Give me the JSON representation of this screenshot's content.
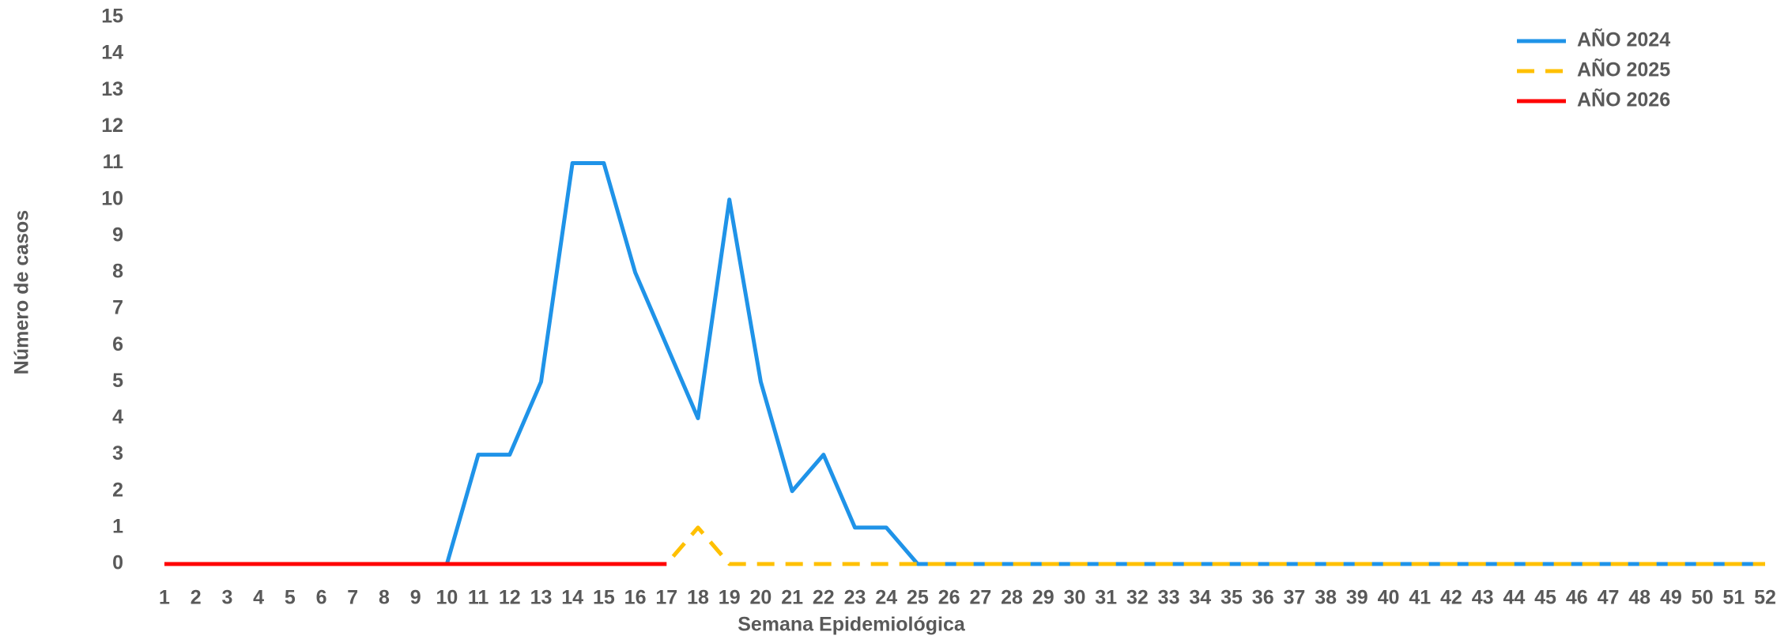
{
  "chart_data": {
    "type": "line",
    "x_label": "Semana Epidemiológica",
    "y_label": "Número de casos",
    "x": [
      1,
      2,
      3,
      4,
      5,
      6,
      7,
      8,
      9,
      10,
      11,
      12,
      13,
      14,
      15,
      16,
      17,
      18,
      19,
      20,
      21,
      22,
      23,
      24,
      25,
      26,
      27,
      28,
      29,
      30,
      31,
      32,
      33,
      34,
      35,
      36,
      37,
      38,
      39,
      40,
      41,
      42,
      43,
      44,
      45,
      46,
      47,
      48,
      49,
      50,
      51,
      52
    ],
    "xlim": [
      1,
      52
    ],
    "ylim": [
      0,
      15
    ],
    "yticks": [
      0,
      1,
      2,
      3,
      4,
      5,
      6,
      7,
      8,
      9,
      10,
      11,
      12,
      13,
      14,
      15
    ],
    "grid": false,
    "legend": "upper right",
    "series": [
      {
        "name": "AÑO 2024",
        "color": "#1f93e8",
        "dash": false,
        "values": [
          0,
          0,
          0,
          0,
          0,
          0,
          0,
          0,
          0,
          0,
          3,
          3,
          5,
          11,
          11,
          8,
          6,
          4,
          10,
          5,
          2,
          3,
          1,
          1,
          0,
          0,
          0,
          0,
          0,
          0,
          0,
          0,
          0,
          0,
          0,
          0,
          0,
          0,
          0,
          0,
          0,
          0,
          0,
          0,
          0,
          0,
          0,
          0,
          0,
          0,
          0,
          0
        ]
      },
      {
        "name": "AÑO 2025",
        "color": "#ffc000",
        "dash": true,
        "values": [
          0,
          0,
          0,
          0,
          0,
          0,
          0,
          0,
          0,
          0,
          0,
          0,
          0,
          0,
          0,
          0,
          0,
          1,
          0,
          0,
          0,
          0,
          0,
          0,
          0,
          0,
          0,
          0,
          0,
          0,
          0,
          0,
          0,
          0,
          0,
          0,
          0,
          0,
          0,
          0,
          0,
          0,
          0,
          0,
          0,
          0,
          0,
          0,
          0,
          0,
          0,
          0
        ]
      },
      {
        "name": "AÑO 2026",
        "color": "#ff0000",
        "dash": false,
        "values": [
          0,
          0,
          0,
          0,
          0,
          0,
          0,
          0,
          0,
          0,
          0,
          0,
          0,
          0,
          0,
          0,
          0,
          null,
          null,
          null,
          null,
          null,
          null,
          null,
          null,
          null,
          null,
          null,
          null,
          null,
          null,
          null,
          null,
          null,
          null,
          null,
          null,
          null,
          null,
          null,
          null,
          null,
          null,
          null,
          null,
          null,
          null,
          null,
          null,
          null,
          null,
          null
        ]
      }
    ]
  }
}
